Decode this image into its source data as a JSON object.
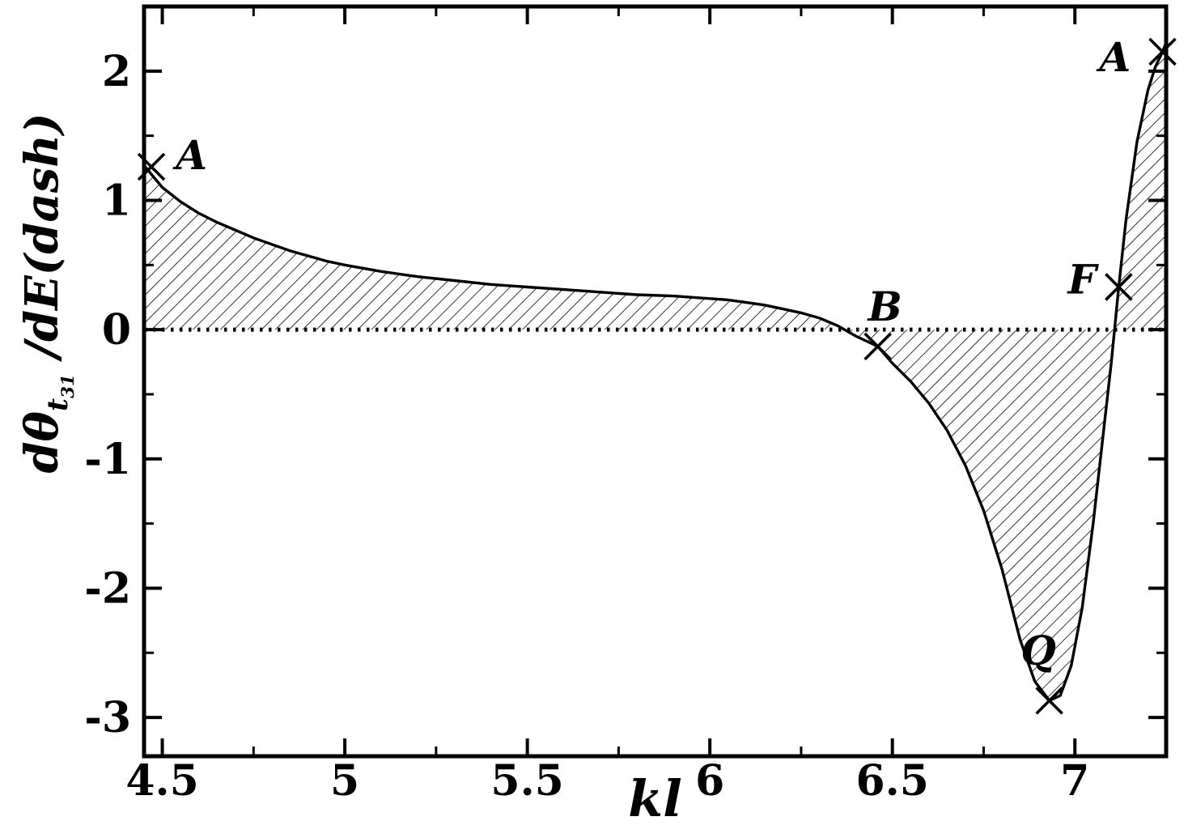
{
  "chart_data": {
    "type": "line",
    "title": "",
    "xlabel": "kl",
    "ylabel": "dθ_t31/dE(dash)",
    "ylabel_parts": {
      "prefix": "dθ",
      "sub": "t",
      "subsub": "31",
      "suffix": " /dE(dash)"
    },
    "xlim": [
      4.45,
      7.25
    ],
    "ylim": [
      -3.3,
      2.5
    ],
    "grid": false,
    "legend": "none",
    "xticks": {
      "major": [
        4.5,
        5,
        5.5,
        6,
        6.5,
        7
      ],
      "labels": [
        "4.5",
        "5",
        "5.5",
        "6",
        "6.5",
        "7"
      ],
      "minor": [
        4.75,
        5.25,
        5.75,
        6.25,
        6.75
      ]
    },
    "yticks": {
      "major": [
        -3,
        -2,
        -1,
        0,
        1,
        2
      ],
      "labels": [
        "-3",
        "-2",
        "-1",
        "0",
        "1",
        "2"
      ],
      "minor": [
        -2.5,
        -1.5,
        -0.5,
        0.5,
        1.5
      ]
    },
    "zero_line": {
      "y": 0,
      "style": "dotted"
    },
    "hatch": {
      "enabled": true,
      "angle_deg": 45,
      "between": "curve and y=0"
    },
    "colors": {
      "line": "#000000",
      "background": "#ffffff"
    },
    "series": [
      {
        "name": "curve",
        "points": [
          [
            4.45,
            1.27
          ],
          [
            4.5,
            1.1
          ],
          [
            4.55,
            0.99
          ],
          [
            4.6,
            0.9
          ],
          [
            4.65,
            0.83
          ],
          [
            4.7,
            0.77
          ],
          [
            4.75,
            0.71
          ],
          [
            4.8,
            0.66
          ],
          [
            4.85,
            0.61
          ],
          [
            4.9,
            0.57
          ],
          [
            4.95,
            0.53
          ],
          [
            5.0,
            0.5
          ],
          [
            5.1,
            0.45
          ],
          [
            5.2,
            0.41
          ],
          [
            5.3,
            0.38
          ],
          [
            5.4,
            0.35
          ],
          [
            5.5,
            0.33
          ],
          [
            5.6,
            0.31
          ],
          [
            5.7,
            0.29
          ],
          [
            5.8,
            0.27
          ],
          [
            5.9,
            0.26
          ],
          [
            6.0,
            0.24
          ],
          [
            6.05,
            0.23
          ],
          [
            6.1,
            0.21
          ],
          [
            6.15,
            0.19
          ],
          [
            6.2,
            0.16
          ],
          [
            6.25,
            0.13
          ],
          [
            6.3,
            0.09
          ],
          [
            6.35,
            0.03
          ],
          [
            6.4,
            -0.05
          ],
          [
            6.46,
            -0.13
          ],
          [
            6.5,
            -0.26
          ],
          [
            6.55,
            -0.4
          ],
          [
            6.6,
            -0.57
          ],
          [
            6.65,
            -0.78
          ],
          [
            6.7,
            -1.05
          ],
          [
            6.75,
            -1.4
          ],
          [
            6.8,
            -1.85
          ],
          [
            6.85,
            -2.4
          ],
          [
            6.89,
            -2.72
          ],
          [
            6.93,
            -2.87
          ],
          [
            6.96,
            -2.83
          ],
          [
            6.99,
            -2.6
          ],
          [
            7.02,
            -2.15
          ],
          [
            7.05,
            -1.5
          ],
          [
            7.08,
            -0.75
          ],
          [
            7.1,
            -0.25
          ],
          [
            7.12,
            0.33
          ],
          [
            7.14,
            0.85
          ],
          [
            7.17,
            1.45
          ],
          [
            7.2,
            1.85
          ],
          [
            7.22,
            2.03
          ],
          [
            7.24,
            2.15
          ],
          [
            7.25,
            2.22
          ]
        ]
      }
    ],
    "markers": [
      {
        "label": "A",
        "x": 4.47,
        "y": 1.26,
        "label_x": 4.58,
        "label_y": 1.34
      },
      {
        "label": "B",
        "x": 6.46,
        "y": -0.13,
        "label_x": 6.48,
        "label_y": 0.17
      },
      {
        "label": "Q",
        "x": 6.93,
        "y": -2.87,
        "label_x": 6.9,
        "label_y": -2.49
      },
      {
        "label": "F",
        "x": 7.12,
        "y": 0.33,
        "label_x": 7.02,
        "label_y": 0.38
      },
      {
        "label": "A",
        "x": 7.24,
        "y": 2.15,
        "label_x": 7.11,
        "label_y": 2.1
      }
    ]
  }
}
